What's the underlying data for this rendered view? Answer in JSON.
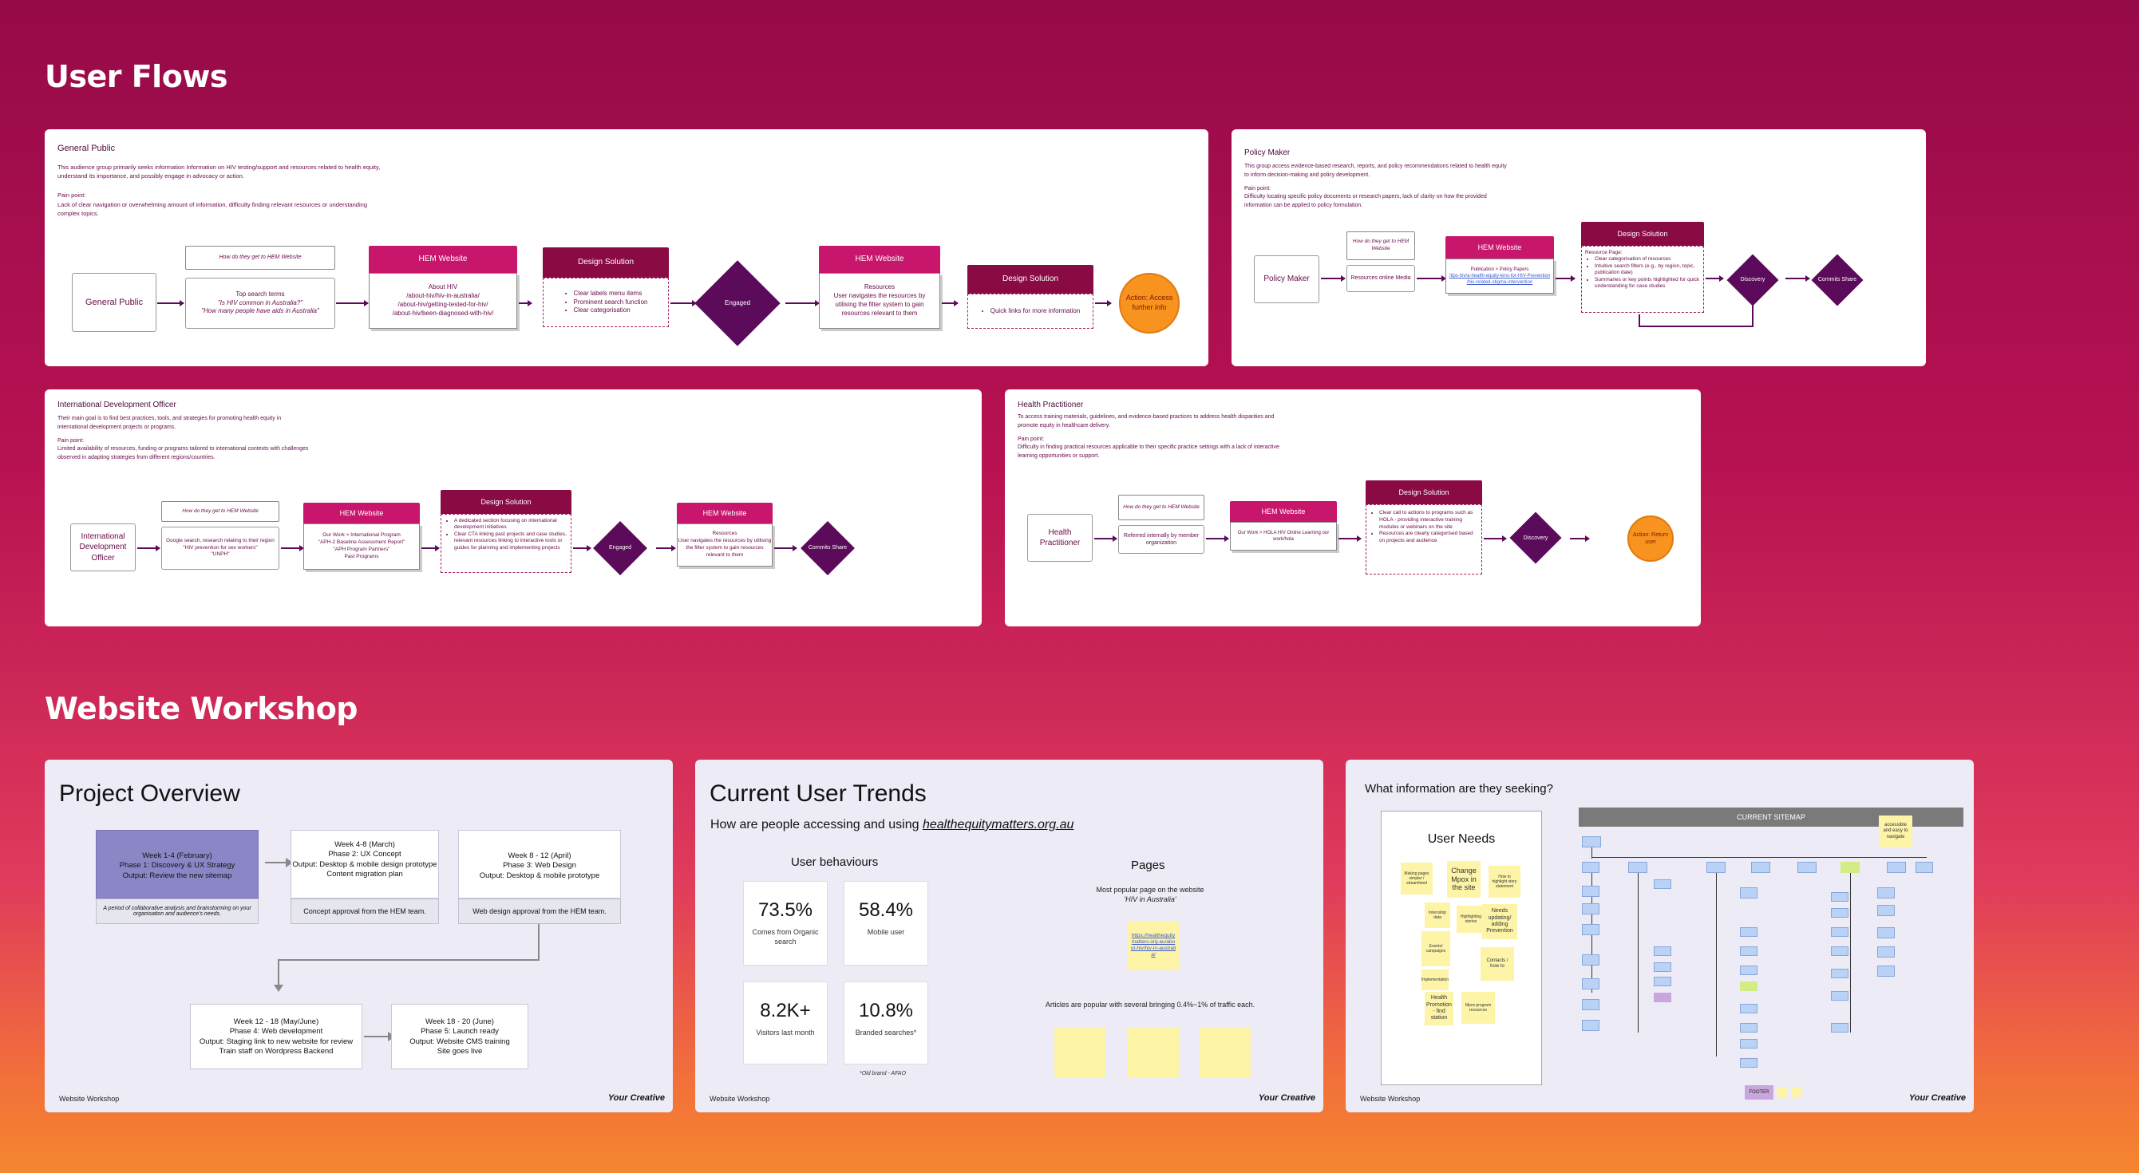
{
  "sections": {
    "user_flows_title": "User Flows",
    "workshop_title": "Website Workshop"
  },
  "general_public": {
    "title": "General Public",
    "desc": "This audience group primarily seeks information Information on HIV testing/support and resources related to health equity, understand its importance, and possibly engage in advocacy or action.",
    "pain_label": "Pain point:",
    "pain": "Lack of clear navigation or overwhelming amount of information, difficulty finding relevant resources or understanding complex topics.",
    "start": "General Public",
    "how_label": "How do they get to HEM Website",
    "how_body_1": "Top search terms",
    "how_body_2": "\"Is HIV common in Australia?\"",
    "how_body_3": "\"How many people have aids in Australia\"",
    "hem1_title": "HEM Website",
    "hem1_body_1": "About HIV",
    "hem1_body_2": "/about-hiv/hiv-in-australia/",
    "hem1_body_3": "/about-hiv/getting-tested-for-hiv/",
    "hem1_body_4": "/about-hiv/been-diagnosed-with-hiv/",
    "ds1_title": "Design Solution",
    "ds1_items": [
      "Clear labels menu items",
      "Prominent search function",
      "Clear categorisation"
    ],
    "engaged": "Engaged",
    "hem2_title": "HEM Website",
    "hem2_body": "Resources\nUser navigates the resources by utilising the filter system to gain resources relevant to them",
    "ds2_title": "Design Solution",
    "ds2_items": [
      "Quick links for more information"
    ],
    "action": "Action: Access further info"
  },
  "policy_maker": {
    "title": "Policy Maker",
    "desc": "This group access evidence-based research, reports, and policy recommendations related to health equity to inform decision-making and policy development.",
    "pain_label": "Pain point:",
    "pain": "Difficulty locating specific policy documents or research papers, lack of clarity on how the provided information can be applied to policy formulation.",
    "start": "Policy Maker",
    "how_label": "How do they get to HEM Website",
    "how_body": "Resources online Media",
    "hem_title": "HEM Website",
    "hem_body_1": "Publication > Policy Papers",
    "hem_body_2": "/tips-hiv/a-health-equity-lens-for-HIV-Prevention",
    "hem_body_3": "/hiv-related-stigma-intervention",
    "ds_title": "Design Solution",
    "ds_intro": "Resource Page:",
    "ds_items": [
      "Clear categorisation of resources",
      "Intuitive search filters (e.g., by region, topic, publication date)",
      "Summaries or key points highlighted for quick understanding for case studies"
    ],
    "discovery": "Discovery",
    "comms": "Commits Share"
  },
  "ido": {
    "title": "International Development Officer",
    "desc": "Their main goal is to find best practices, tools, and strategies for promoting health equity in international development projects or programs.",
    "pain_label": "Pain point:",
    "pain": "Limited availability of resources, funding or programs tailored to international contexts with challenges observed in adapting strategies from different regions/countries.",
    "start": "International Development Officer",
    "how_label": "How do they get to HEM Website",
    "how_body": "Google search, research relating to their region\n\"HIV prevention for sex workers\"\n\"UNPH\"",
    "hem1_title": "HEM Website",
    "hem1_body": "Our Work > International Program\n\"APH-2 Baseline Assessment Report\"\n\"APH Program Partners\"\nPast Programs",
    "ds_title": "Design Solution",
    "ds_items": [
      "A dedicated section focusing on international development initiatives",
      "Clear CTA linking past projects and case studies, relevant resources linking to interactive tools or guides for planning and implementing projects"
    ],
    "engaged": "Engaged",
    "hem2_title": "HEM Website",
    "hem2_body": "Resources\nUser navigates the resources by utilising the filter system to gain resources relevant to them",
    "comms": "Commits Share"
  },
  "hp": {
    "title": "Health Practitioner",
    "desc": "To access training materials, guidelines, and evidence-based practices to address health disparities and promote equity in healthcare delivery.",
    "pain_label": "Pain point:",
    "pain": "Difficulty in finding practical resources applicable to their specific practice settings with a lack of interactive learning opportunities or support.",
    "start": "Health Practitioner",
    "how_label": "How do they get to HEM Website",
    "how_body": "Referred internally by member organization",
    "hem_title": "HEM Website",
    "hem_body": "Our Work > HOLA HIV Online Learning our work/hola",
    "ds_title": "Design Solution",
    "ds_items": [
      "Clear call to actions to programs such as HOLA - providing interactive training modules or webinars on the site",
      "Resources are clearly categorised based on projects and audience"
    ],
    "discovery": "Discovery",
    "action": "Action: Return user"
  },
  "project_overview": {
    "title": "Project Overview",
    "phase1": "Week 1-4 (February)\nPhase 1: Discovery & UX Strategy\nOutput: Review the new sitemap",
    "phase1_note": "A period of collaborative analysis and brainstorming on your organisation and audience's needs.",
    "phase2": "Week 4-8 (March)\nPhase 2: UX Concept\nOutput: Desktop & mobile design prototype\nContent migration plan",
    "phase2_note": "Concept approval from the HEM team.",
    "phase3": "Week 8 - 12 (April)\nPhase 3: Web Design\nOutput: Desktop & mobile prototype",
    "phase3_note": "Web design approval from the HEM team.",
    "phase4": "Week 12 - 18 (May/June)\nPhase 4: Web development\nOutput: Staging link to new website for review\nTrain staff on Wordpress Backend",
    "phase5": "Week 18 - 20 (June)\nPhase 5: Launch ready\nOutput: Website CMS training\nSite goes live",
    "footer": "Website Workshop",
    "brand": "Your Creative"
  },
  "trends": {
    "title": "Current User Trends",
    "subtitle": "How are people accessing and using",
    "link": "healthequitymatters.org.au",
    "behaviours_title": "User behaviours",
    "stats": [
      {
        "value": "73.5%",
        "label": "Comes from Organic search"
      },
      {
        "value": "58.4%",
        "label": "Mobile user"
      },
      {
        "value": "8.2K+",
        "label": "Visitors last month"
      },
      {
        "value": "10.8%",
        "label": "Branded searches*"
      }
    ],
    "note": "*Old brand - AFAO",
    "pages_title": "Pages",
    "popular": "Most popular page on the website",
    "popular_page": "'HIV in Australia'",
    "popular_link": "https://healthequitymatters.org.au/about-hiv/hiv-in-australia/",
    "articles": "Articles are popular with several bringing 0.4%~1% of traffic each.",
    "footer": "Website Workshop",
    "brand": "Your Creative"
  },
  "seeking": {
    "title": "What information are they seeking?",
    "needs_title": "User Needs",
    "sitemap_title": "CURRENT SITEMAP",
    "needs_notes": [
      "Making pages simpler / streamlined",
      "Change Mpox in the site",
      "How to highlight story statement",
      "Internship data",
      "Highlighting stories",
      "Needs updating/ adding Prevention",
      "Events/ campaigns",
      "Contacts / how to",
      "Health Promotion - find station",
      "Implementation",
      "Mpox program resources"
    ],
    "sticky_accessible": "accessible and easy to navigate",
    "footer_label": "FOOTER",
    "footer": "Website Workshop",
    "brand": "Your Creative"
  },
  "colors": {
    "hem": "#c8166c",
    "design_solution": "#8a0a44",
    "diamond": "#5c0a5a",
    "action": "#f7931e"
  }
}
